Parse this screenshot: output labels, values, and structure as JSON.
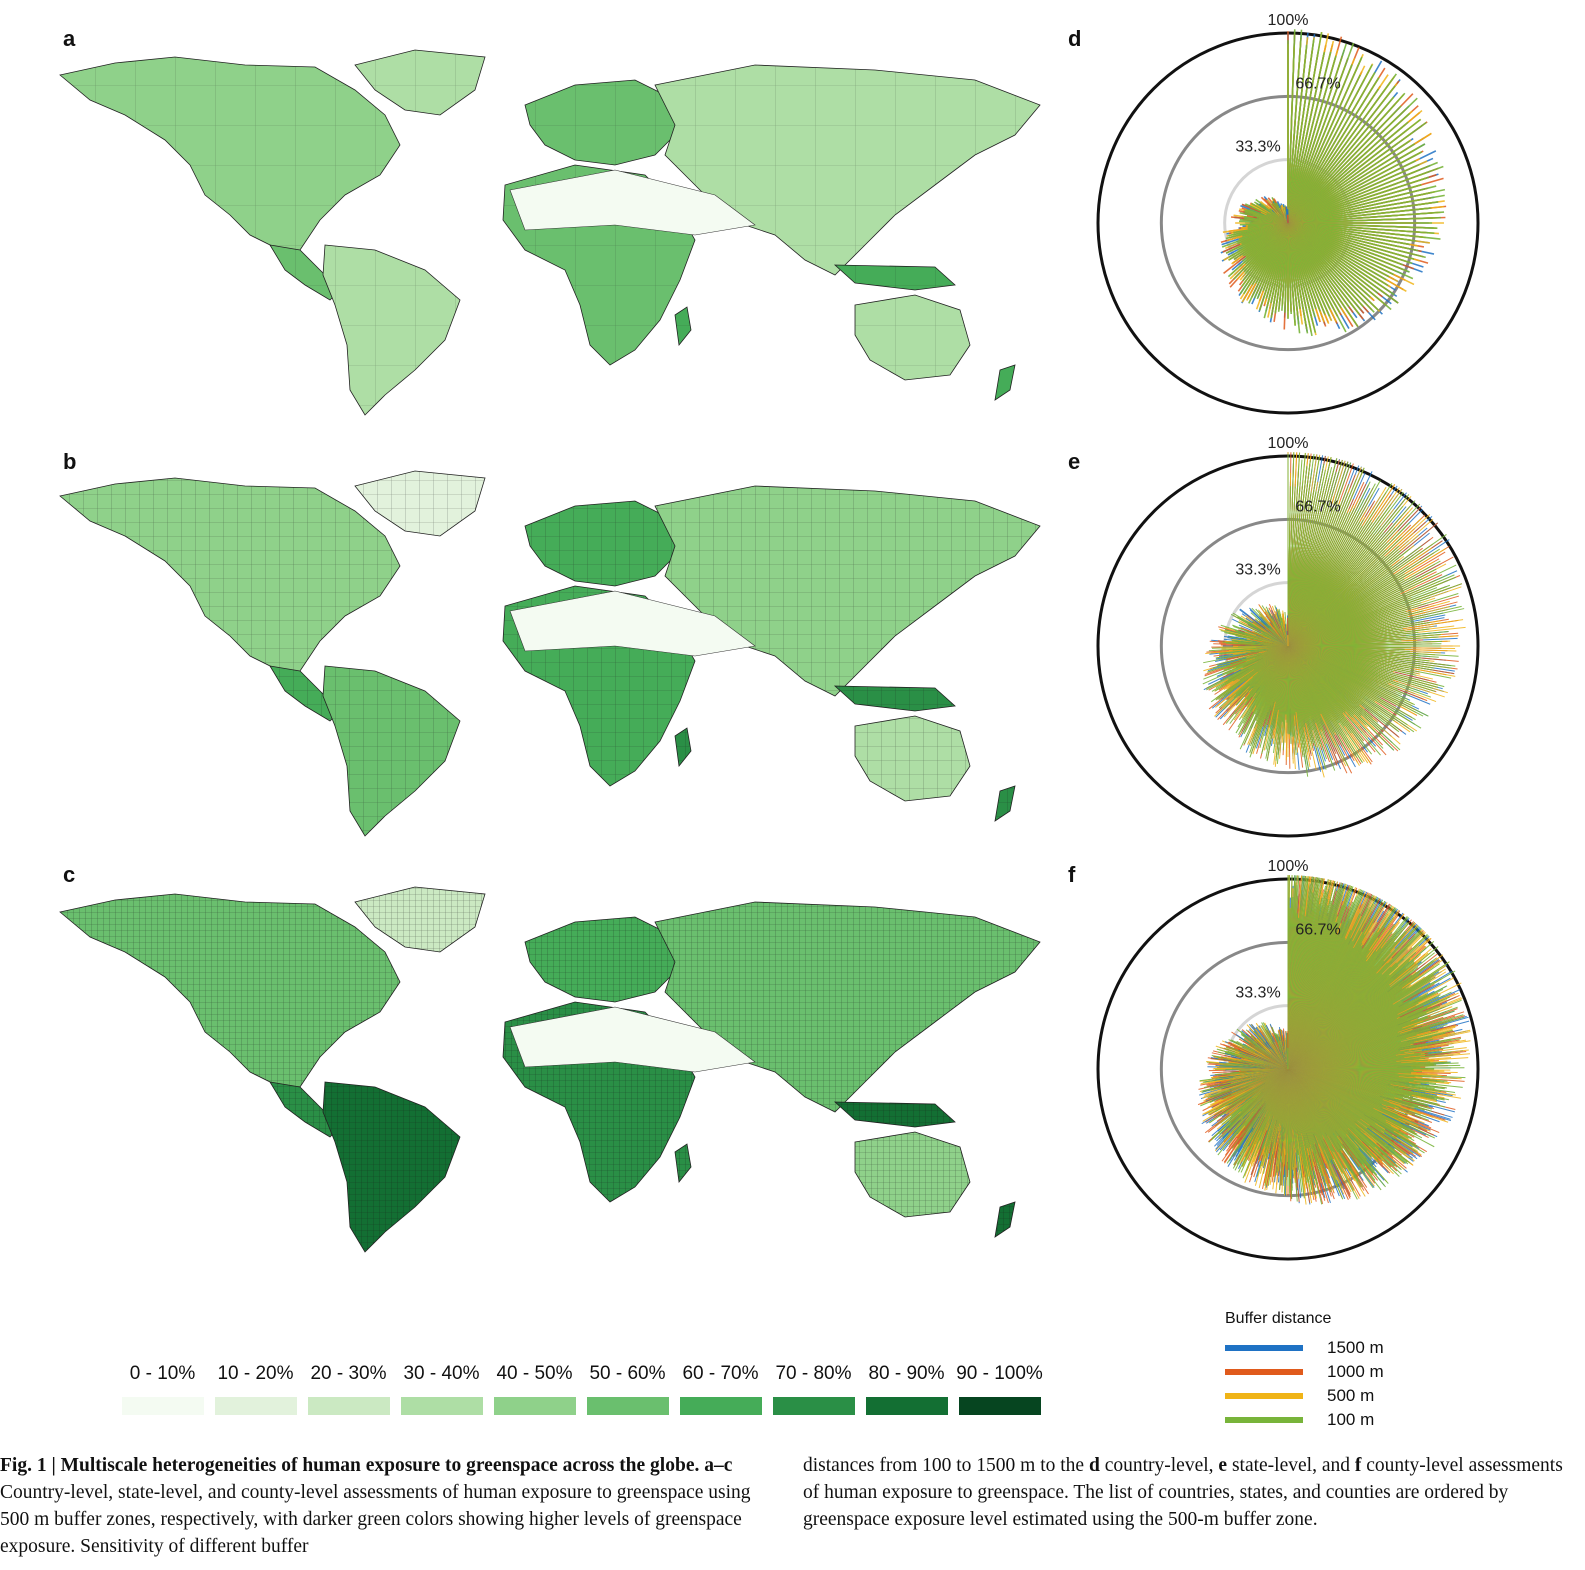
{
  "panels": {
    "a": "a",
    "b": "b",
    "c": "c",
    "d": "d",
    "e": "e",
    "f": "f"
  },
  "polar_ring_labels": [
    "100%",
    "66.7%",
    "33.3%"
  ],
  "legend_scale": {
    "labels": [
      "0 - 10%",
      "10 - 20%",
      "20 - 30%",
      "30 - 40%",
      "40 - 50%",
      "50 - 60%",
      "60 - 70%",
      "70 - 80%",
      "80 - 90%",
      "90 - 100%"
    ],
    "colors": [
      "#f4fbf2",
      "#e2f2dc",
      "#cbe9c2",
      "#aedea5",
      "#8fd18a",
      "#6abf6e",
      "#45ac58",
      "#2a8f46",
      "#136f33",
      "#064520"
    ]
  },
  "buffer_legend": {
    "title": "Buffer distance",
    "items": [
      {
        "label": "1500 m",
        "color": "#1f72c4"
      },
      {
        "label": "1000 m",
        "color": "#e05a1c"
      },
      {
        "label": "500 m",
        "color": "#f0b417"
      },
      {
        "label": "100 m",
        "color": "#78b43a"
      }
    ]
  },
  "caption": {
    "fig_label": "Fig. 1 | Multiscale heterogeneities of human exposure to greenspace across the globe.",
    "panels_ac": "a–c",
    "left_text": " Country-level, state-level, and county-level assessments of human exposure to greenspace using 500 m buffer zones, respectively, with darker green colors showing higher levels of greenspace exposure. Sensitivity of different buffer",
    "right_1": "distances from 100 to 1500 m to the ",
    "d": "d",
    "right_2": " country-level, ",
    "e": "e",
    "right_3": " state-level, and ",
    "f": "f",
    "right_4": " county-level assessments of human exposure to greenspace. The list of countries, states, and counties are ordered by greenspace exposure level estimated using the 500-m buffer zone."
  }
}
